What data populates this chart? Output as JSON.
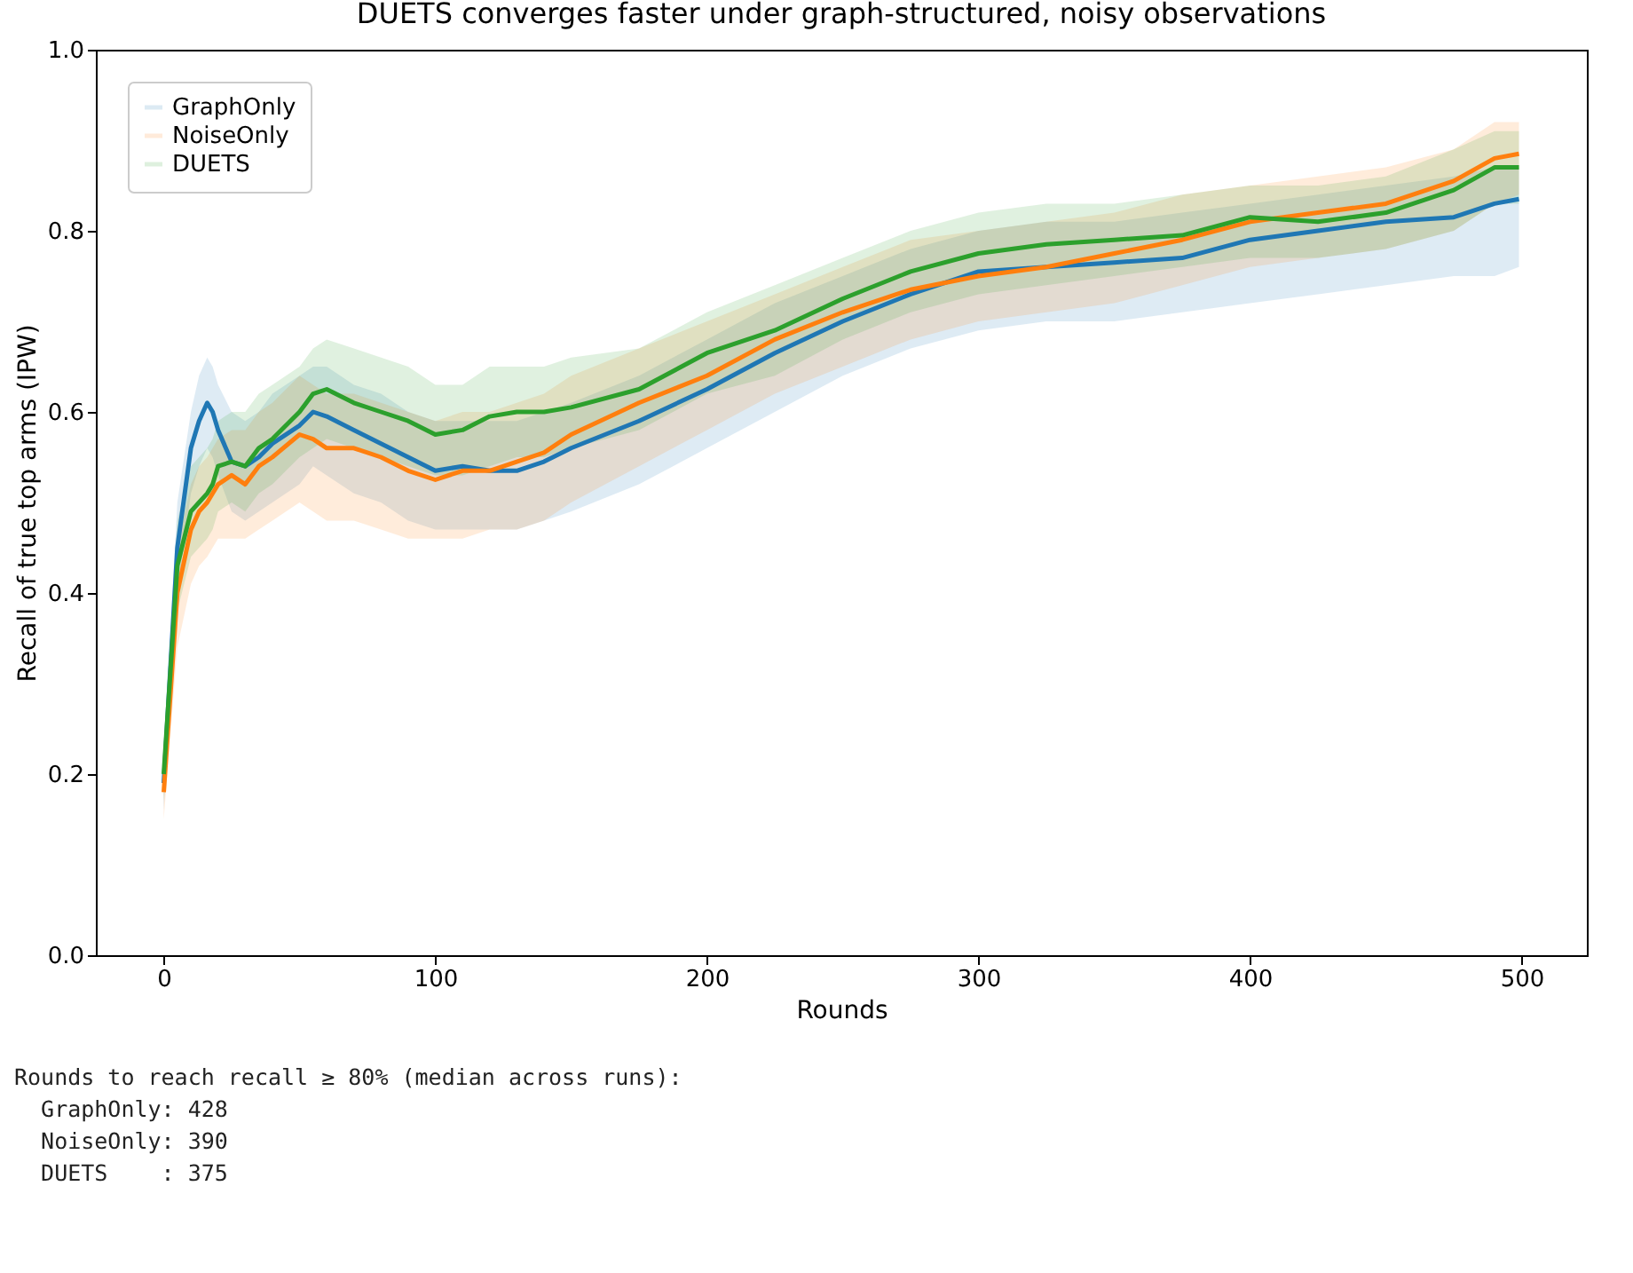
{
  "chart_data": {
    "type": "line",
    "title": "DUETS converges faster under graph-structured, noisy observations",
    "xlabel": "Rounds",
    "ylabel": "Recall of true top arms (IPW)",
    "x": [
      0,
      5,
      10,
      13,
      16,
      18,
      20,
      25,
      30,
      35,
      40,
      50,
      55,
      60,
      70,
      80,
      90,
      100,
      110,
      120,
      130,
      140,
      150,
      175,
      200,
      225,
      250,
      275,
      300,
      325,
      350,
      375,
      400,
      425,
      450,
      475,
      490,
      499
    ],
    "series": [
      {
        "name": "GraphOnly",
        "color": "#1f77b4",
        "values": [
          0.19,
          0.45,
          0.56,
          0.59,
          0.61,
          0.6,
          0.58,
          0.545,
          0.54,
          0.55,
          0.565,
          0.585,
          0.6,
          0.595,
          0.58,
          0.565,
          0.55,
          0.535,
          0.54,
          0.535,
          0.535,
          0.545,
          0.56,
          0.59,
          0.625,
          0.665,
          0.7,
          0.73,
          0.755,
          0.76,
          0.765,
          0.77,
          0.79,
          0.8,
          0.81,
          0.815,
          0.83,
          0.835
        ],
        "lower": [
          0.16,
          0.4,
          0.51,
          0.54,
          0.56,
          0.55,
          0.53,
          0.49,
          0.48,
          0.49,
          0.5,
          0.52,
          0.54,
          0.53,
          0.51,
          0.5,
          0.48,
          0.47,
          0.47,
          0.47,
          0.47,
          0.48,
          0.49,
          0.52,
          0.56,
          0.6,
          0.64,
          0.67,
          0.69,
          0.7,
          0.7,
          0.71,
          0.72,
          0.73,
          0.74,
          0.75,
          0.75,
          0.76
        ],
        "upper": [
          0.22,
          0.5,
          0.6,
          0.64,
          0.66,
          0.65,
          0.63,
          0.6,
          0.59,
          0.6,
          0.62,
          0.64,
          0.65,
          0.65,
          0.63,
          0.62,
          0.6,
          0.59,
          0.59,
          0.59,
          0.59,
          0.6,
          0.61,
          0.64,
          0.68,
          0.72,
          0.75,
          0.78,
          0.8,
          0.81,
          0.81,
          0.82,
          0.83,
          0.84,
          0.85,
          0.86,
          0.87,
          0.87
        ]
      },
      {
        "name": "NoiseOnly",
        "color": "#ff7f0e",
        "values": [
          0.18,
          0.4,
          0.47,
          0.49,
          0.5,
          0.51,
          0.52,
          0.53,
          0.52,
          0.54,
          0.55,
          0.575,
          0.57,
          0.56,
          0.56,
          0.55,
          0.535,
          0.525,
          0.535,
          0.535,
          0.545,
          0.555,
          0.575,
          0.61,
          0.64,
          0.68,
          0.71,
          0.735,
          0.75,
          0.76,
          0.775,
          0.79,
          0.81,
          0.82,
          0.83,
          0.855,
          0.88,
          0.885
        ],
        "lower": [
          0.15,
          0.34,
          0.41,
          0.43,
          0.44,
          0.45,
          0.46,
          0.46,
          0.46,
          0.47,
          0.48,
          0.5,
          0.49,
          0.48,
          0.48,
          0.47,
          0.46,
          0.46,
          0.46,
          0.47,
          0.47,
          0.48,
          0.5,
          0.54,
          0.58,
          0.62,
          0.65,
          0.68,
          0.7,
          0.71,
          0.72,
          0.74,
          0.76,
          0.77,
          0.78,
          0.8,
          0.83,
          0.84
        ],
        "upper": [
          0.21,
          0.45,
          0.52,
          0.54,
          0.55,
          0.56,
          0.57,
          0.58,
          0.58,
          0.6,
          0.61,
          0.64,
          0.63,
          0.62,
          0.62,
          0.61,
          0.6,
          0.59,
          0.6,
          0.6,
          0.61,
          0.62,
          0.64,
          0.67,
          0.7,
          0.73,
          0.76,
          0.79,
          0.8,
          0.81,
          0.82,
          0.84,
          0.85,
          0.86,
          0.87,
          0.89,
          0.92,
          0.92
        ]
      },
      {
        "name": "DUETS",
        "color": "#2ca02c",
        "values": [
          0.2,
          0.43,
          0.49,
          0.5,
          0.51,
          0.52,
          0.54,
          0.545,
          0.54,
          0.56,
          0.57,
          0.6,
          0.62,
          0.625,
          0.61,
          0.6,
          0.59,
          0.575,
          0.58,
          0.595,
          0.6,
          0.6,
          0.605,
          0.625,
          0.665,
          0.69,
          0.725,
          0.755,
          0.775,
          0.785,
          0.79,
          0.795,
          0.815,
          0.81,
          0.82,
          0.845,
          0.87,
          0.87
        ],
        "lower": [
          0.17,
          0.38,
          0.44,
          0.45,
          0.46,
          0.47,
          0.49,
          0.5,
          0.49,
          0.51,
          0.52,
          0.55,
          0.56,
          0.57,
          0.56,
          0.55,
          0.54,
          0.53,
          0.53,
          0.54,
          0.55,
          0.55,
          0.56,
          0.58,
          0.62,
          0.64,
          0.68,
          0.71,
          0.73,
          0.74,
          0.75,
          0.76,
          0.77,
          0.77,
          0.78,
          0.8,
          0.83,
          0.83
        ],
        "upper": [
          0.23,
          0.48,
          0.54,
          0.55,
          0.56,
          0.57,
          0.59,
          0.6,
          0.6,
          0.62,
          0.63,
          0.65,
          0.67,
          0.68,
          0.67,
          0.66,
          0.65,
          0.63,
          0.63,
          0.65,
          0.65,
          0.65,
          0.66,
          0.67,
          0.71,
          0.74,
          0.77,
          0.8,
          0.82,
          0.83,
          0.83,
          0.84,
          0.85,
          0.85,
          0.86,
          0.89,
          0.91,
          0.91
        ]
      }
    ],
    "xlim": [
      -25,
      524
    ],
    "xticks": [
      0,
      100,
      200,
      300,
      400,
      500
    ],
    "ylim": [
      0,
      1
    ],
    "yticks": [
      {
        "value": 0,
        "label": "0.0"
      },
      {
        "value": 0.2,
        "label": "0.2"
      },
      {
        "value": 0.4,
        "label": "0.4"
      },
      {
        "value": 0.6,
        "label": "0.6"
      },
      {
        "value": 0.8,
        "label": "0.8"
      },
      {
        "value": 1,
        "label": "1.0"
      }
    ],
    "legend": "top left",
    "annotations": [
      "Rounds to reach recall ≥ 80% (median across runs):",
      "  GraphOnly: 428",
      "  NoiseOnly: 390",
      "  DUETS    : 375"
    ]
  }
}
